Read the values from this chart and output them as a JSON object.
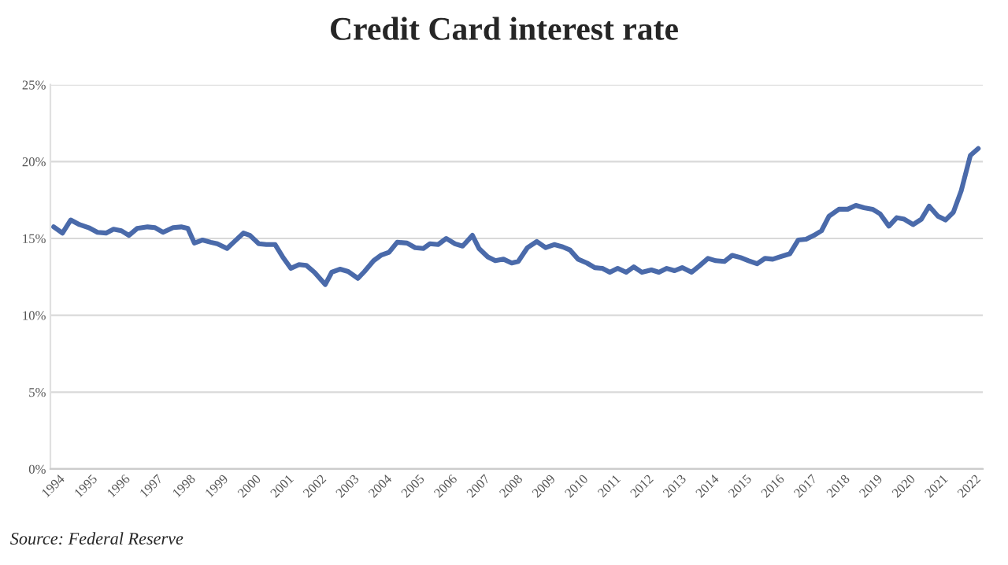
{
  "chart_data": {
    "type": "line",
    "title": "Credit Card interest rate",
    "annotations": [
      "Source: Federal Reserve"
    ],
    "x": [
      1994.0,
      1994.27,
      1994.52,
      1994.79,
      1995.07,
      1995.34,
      1995.6,
      1995.83,
      1996.07,
      1996.3,
      1996.55,
      1996.87,
      1997.1,
      1997.34,
      1997.65,
      1997.9,
      1998.1,
      1998.3,
      1998.55,
      1998.8,
      1999.0,
      1999.3,
      1999.5,
      1999.8,
      2000.0,
      2000.27,
      2000.5,
      2000.77,
      2001.0,
      2001.25,
      2001.5,
      2001.72,
      2001.97,
      2002.3,
      2002.5,
      2002.75,
      2003.0,
      2003.3,
      2003.5,
      2003.78,
      2004.0,
      2004.25,
      2004.5,
      2004.8,
      2005.05,
      2005.3,
      2005.5,
      2005.75,
      2006.0,
      2006.27,
      2006.5,
      2006.8,
      2007.0,
      2007.27,
      2007.5,
      2007.75,
      2008.0,
      2008.2,
      2008.48,
      2008.77,
      2009.04,
      2009.3,
      2009.56,
      2009.78,
      2010.03,
      2010.3,
      2010.54,
      2010.77,
      2011.0,
      2011.24,
      2011.5,
      2011.73,
      2011.98,
      2012.27,
      2012.5,
      2012.74,
      2012.98,
      2013.21,
      2013.5,
      2013.73,
      2014.0,
      2014.24,
      2014.5,
      2014.74,
      2015.0,
      2015.24,
      2015.5,
      2015.74,
      2015.98,
      2016.2,
      2016.5,
      2016.76,
      2017.0,
      2017.24,
      2017.47,
      2017.7,
      2018.0,
      2018.27,
      2018.52,
      2018.77,
      2019.03,
      2019.26,
      2019.53,
      2019.77,
      2020.0,
      2020.27,
      2020.52,
      2020.76,
      2021.03,
      2021.26,
      2021.5,
      2021.74,
      2022.02,
      2022.26
    ],
    "series": [
      {
        "color": "#4a6aaa",
        "values": [
          15.75,
          15.35,
          16.2,
          15.9,
          15.7,
          15.4,
          15.35,
          15.6,
          15.5,
          15.2,
          15.65,
          15.75,
          15.7,
          15.4,
          15.7,
          15.75,
          15.65,
          14.7,
          14.9,
          14.75,
          14.65,
          14.35,
          14.75,
          15.35,
          15.2,
          14.65,
          14.6,
          14.6,
          13.8,
          13.05,
          13.3,
          13.25,
          12.8,
          12.0,
          12.8,
          13.0,
          12.85,
          12.4,
          12.85,
          13.55,
          13.9,
          14.1,
          14.75,
          14.7,
          14.4,
          14.35,
          14.65,
          14.6,
          15.0,
          14.65,
          14.5,
          15.2,
          14.35,
          13.8,
          13.55,
          13.65,
          13.4,
          13.5,
          14.4,
          14.8,
          14.4,
          14.6,
          14.45,
          14.25,
          13.65,
          13.4,
          13.1,
          13.05,
          12.8,
          13.05,
          12.8,
          13.15,
          12.8,
          12.95,
          12.8,
          13.05,
          12.9,
          13.1,
          12.8,
          13.2,
          13.7,
          13.55,
          13.5,
          13.9,
          13.75,
          13.55,
          13.35,
          13.7,
          13.65,
          13.8,
          14.0,
          14.9,
          14.95,
          15.2,
          15.5,
          16.45,
          16.9,
          16.9,
          17.15,
          17.0,
          16.9,
          16.6,
          15.8,
          16.35,
          16.25,
          15.9,
          16.25,
          17.1,
          16.45,
          16.2,
          16.7,
          18.1,
          20.4,
          20.85
        ]
      }
    ],
    "xlim": [
      1993.9,
      2022.4
    ],
    "xticks": [
      1994,
      1995,
      1996,
      1997,
      1998,
      1999,
      2000,
      2001,
      2002,
      2003,
      2004,
      2005,
      2006,
      2007,
      2008,
      2009,
      2010,
      2011,
      2012,
      2013,
      2014,
      2015,
      2016,
      2017,
      2018,
      2019,
      2020,
      2021,
      2022
    ],
    "ylim": [
      0,
      25
    ],
    "yticks": [
      {
        "value": 0,
        "label": "0%"
      },
      {
        "value": 5,
        "label": "5%"
      },
      {
        "value": 10,
        "label": "10%"
      },
      {
        "value": 15,
        "label": "15%"
      },
      {
        "value": 20,
        "label": "20%"
      },
      {
        "value": 25,
        "label": "25%"
      }
    ],
    "grid": "y",
    "legend": false,
    "marker": "none",
    "line_style": "solid"
  }
}
